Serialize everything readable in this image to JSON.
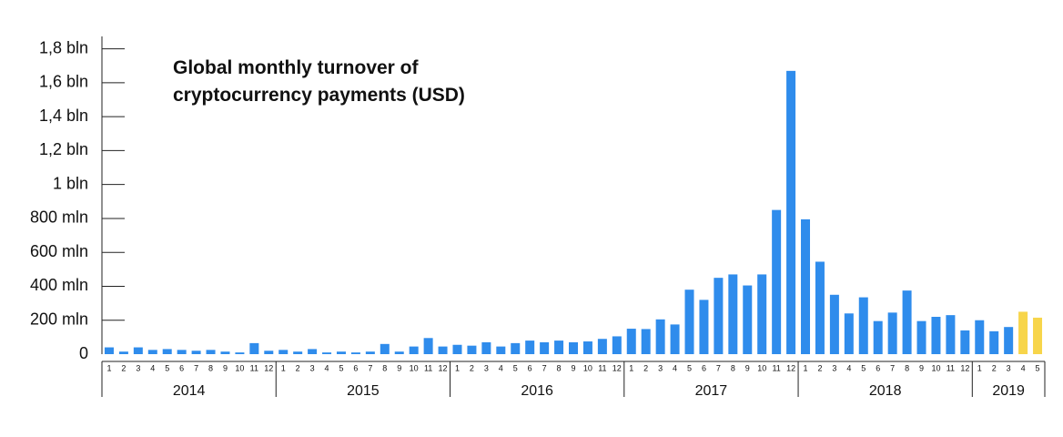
{
  "chart_data": {
    "type": "bar",
    "title": "Global monthly turnover of cryptocurrency payments (USD)",
    "categories": [
      "1",
      "2",
      "3",
      "4",
      "5",
      "6",
      "7",
      "8",
      "9",
      "10",
      "11",
      "12",
      "1",
      "2",
      "3",
      "4",
      "5",
      "6",
      "7",
      "8",
      "9",
      "10",
      "11",
      "12",
      "1",
      "2",
      "3",
      "4",
      "5",
      "6",
      "7",
      "8",
      "9",
      "10",
      "11",
      "12",
      "1",
      "2",
      "3",
      "4",
      "5",
      "6",
      "7",
      "8",
      "9",
      "10",
      "11",
      "12",
      "1",
      "2",
      "3",
      "4",
      "5",
      "6",
      "7",
      "8",
      "9",
      "10",
      "11",
      "12",
      "1",
      "2",
      "3",
      "4",
      "5"
    ],
    "values": [
      40,
      15,
      40,
      25,
      30,
      25,
      20,
      25,
      15,
      10,
      65,
      20,
      25,
      15,
      30,
      10,
      15,
      10,
      15,
      60,
      15,
      45,
      95,
      45,
      55,
      50,
      70,
      45,
      65,
      80,
      70,
      80,
      70,
      75,
      90,
      105,
      150,
      148,
      205,
      175,
      380,
      320,
      450,
      470,
      405,
      470,
      850,
      1670,
      795,
      545,
      350,
      240,
      335,
      195,
      245,
      375,
      195,
      220,
      230,
      140,
      200,
      135,
      160,
      250,
      215
    ],
    "colors": [
      "#2f8cec",
      "#2f8cec",
      "#2f8cec",
      "#2f8cec",
      "#2f8cec",
      "#2f8cec",
      "#2f8cec",
      "#2f8cec",
      "#2f8cec",
      "#2f8cec",
      "#2f8cec",
      "#2f8cec",
      "#2f8cec",
      "#2f8cec",
      "#2f8cec",
      "#2f8cec",
      "#2f8cec",
      "#2f8cec",
      "#2f8cec",
      "#2f8cec",
      "#2f8cec",
      "#2f8cec",
      "#2f8cec",
      "#2f8cec",
      "#2f8cec",
      "#2f8cec",
      "#2f8cec",
      "#2f8cec",
      "#2f8cec",
      "#2f8cec",
      "#2f8cec",
      "#2f8cec",
      "#2f8cec",
      "#2f8cec",
      "#2f8cec",
      "#2f8cec",
      "#2f8cec",
      "#2f8cec",
      "#2f8cec",
      "#2f8cec",
      "#2f8cec",
      "#2f8cec",
      "#2f8cec",
      "#2f8cec",
      "#2f8cec",
      "#2f8cec",
      "#2f8cec",
      "#2f8cec",
      "#2f8cec",
      "#2f8cec",
      "#2f8cec",
      "#2f8cec",
      "#2f8cec",
      "#2f8cec",
      "#2f8cec",
      "#2f8cec",
      "#2f8cec",
      "#2f8cec",
      "#2f8cec",
      "#2f8cec",
      "#2f8cec",
      "#2f8cec",
      "#2f8cec",
      "#f7d54a",
      "#f7d54a"
    ],
    "groups": [
      {
        "label": "2014",
        "count": 12
      },
      {
        "label": "2015",
        "count": 12
      },
      {
        "label": "2016",
        "count": 12
      },
      {
        "label": "2017",
        "count": 12
      },
      {
        "label": "2018",
        "count": 12
      },
      {
        "label": "2019",
        "count": 5
      }
    ],
    "ylim": [
      0,
      1900
    ],
    "yticks": [
      0,
      {
        "value": 200,
        "label": "200 mln"
      },
      {
        "value": 400,
        "label": "400 mln"
      },
      {
        "value": 600,
        "label": "600 mln"
      },
      {
        "value": 800,
        "label": "800 mln"
      },
      {
        "value": 1000,
        "label": "1 bln"
      },
      {
        "value": 1200,
        "label": "1,2 bln"
      },
      {
        "value": 1400,
        "label": "1,4 bln"
      },
      {
        "value": 1600,
        "label": "1,6 bln"
      },
      {
        "value": 1800,
        "label": "1,8 bln"
      }
    ]
  }
}
